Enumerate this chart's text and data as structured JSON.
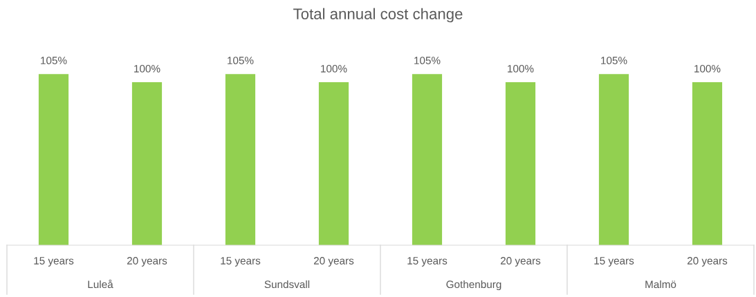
{
  "chart_data": {
    "type": "bar",
    "title": "Total annual cost change",
    "categories": [
      "15 years",
      "20 years",
      "15 years",
      "20 years",
      "15 years",
      "20 years",
      "15 years",
      "20 years"
    ],
    "values": [
      105,
      100,
      105,
      100,
      105,
      100,
      105,
      100
    ],
    "value_labels": [
      "105%",
      "100%",
      "105%",
      "100%",
      "105%",
      "100%",
      "105%",
      "100%"
    ],
    "color": "#92d050",
    "annotations": [
      "Luleå",
      "Sundsvall",
      "Gothenburg",
      "Malmö"
    ],
    "grid": false,
    "legend": false
  }
}
